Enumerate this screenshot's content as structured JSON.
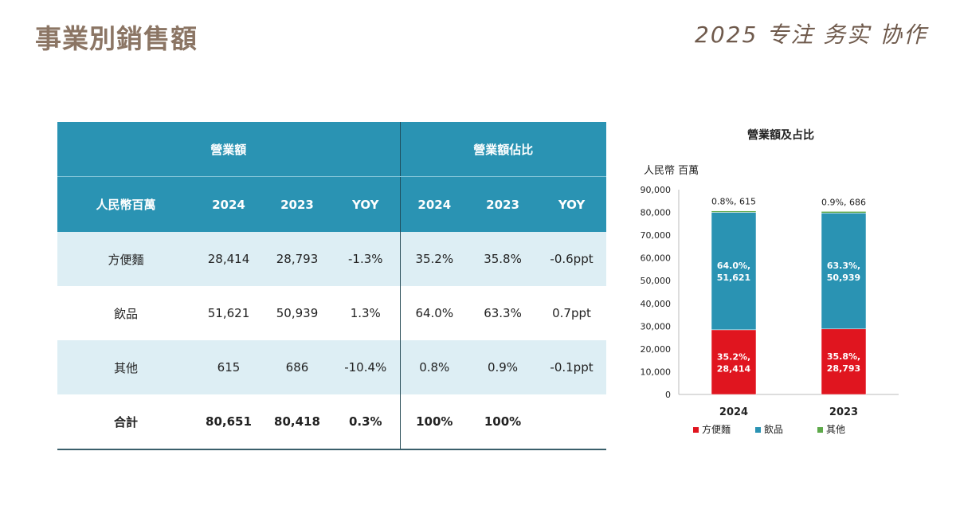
{
  "header": {
    "title": "事業別銷售額",
    "slogan": "2025 专注 务实 协作"
  },
  "table": {
    "group_headers": [
      "營業額",
      "營業額佔比"
    ],
    "columns": [
      "人民幣百萬",
      "2024",
      "2023",
      "YOY",
      "2024",
      "2023",
      "YOY"
    ],
    "rows": [
      {
        "label": "方便麵",
        "cells": [
          "28,414",
          "28,793",
          "-1.3%",
          "35.2%",
          "35.8%",
          "-0.6ppt"
        ]
      },
      {
        "label": "飲品",
        "cells": [
          "51,621",
          "50,939",
          "1.3%",
          "64.0%",
          "63.3%",
          "0.7ppt"
        ]
      },
      {
        "label": "其他",
        "cells": [
          "615",
          "686",
          "-10.4%",
          "0.8%",
          "0.9%",
          "-0.1ppt"
        ]
      },
      {
        "label": "合計",
        "cells": [
          "80,651",
          "80,418",
          "0.3%",
          "100%",
          "100%",
          ""
        ]
      }
    ]
  },
  "chart_data": {
    "type": "bar",
    "stacked": true,
    "title": "營業額及占比",
    "ylabel": "人民幣 百萬",
    "categories": [
      "2024",
      "2023"
    ],
    "ylim": [
      0,
      90000
    ],
    "yticks": [
      0,
      10000,
      20000,
      30000,
      40000,
      50000,
      60000,
      70000,
      80000,
      90000
    ],
    "ytick_labels": [
      "0",
      "10,000",
      "20,000",
      "30,000",
      "40,000",
      "50,000",
      "60,000",
      "70,000",
      "80,000",
      "90,000"
    ],
    "series": [
      {
        "name": "方便麵",
        "color": "#e0151f",
        "values": [
          28414,
          28793
        ],
        "labels": [
          [
            "35.2%,",
            "28,414"
          ],
          [
            "35.8%,",
            "28,793"
          ]
        ]
      },
      {
        "name": "飲品",
        "color": "#2a93b3",
        "values": [
          51621,
          50939
        ],
        "labels": [
          [
            "64.0%,",
            "51,621"
          ],
          [
            "63.3%,",
            "50,939"
          ]
        ]
      },
      {
        "name": "其他",
        "color": "#5ea94a",
        "values": [
          615,
          686
        ],
        "labels": [
          [
            "0.8%, 615"
          ],
          [
            "0.9%, 686"
          ]
        ]
      }
    ],
    "legend_position": "bottom",
    "grid": false
  }
}
